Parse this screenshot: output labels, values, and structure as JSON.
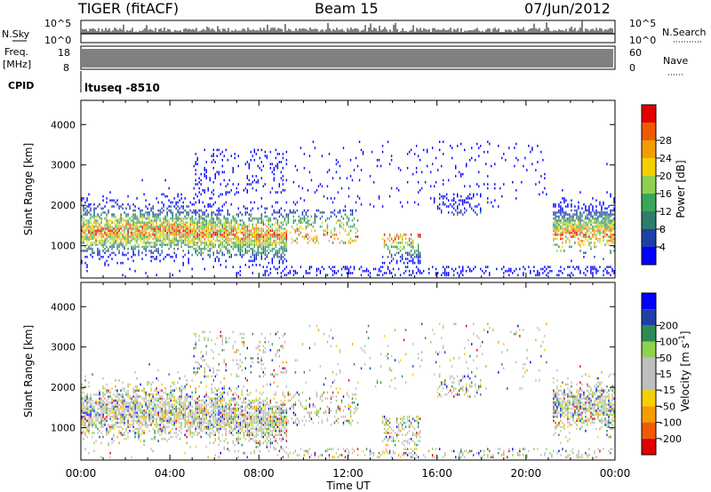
{
  "header": {
    "radar": "TIGER (fitACF)",
    "beam": "Beam 15",
    "date": "07/Jun/2012"
  },
  "nsky_panel": {
    "left_label": "N.Sky",
    "right_label": "N.Search",
    "left_ticks": [
      "10^5",
      "10^0"
    ],
    "right_ticks": [
      "10^5",
      "10^0"
    ]
  },
  "freq_panel": {
    "left_label_1": "Freq.",
    "left_label_2": "[MHz]",
    "left_ticks": [
      "18",
      "8"
    ],
    "right_ticks": [
      "60",
      "0"
    ],
    "right_label": "Nave"
  },
  "cpid_panel": {
    "label": "CPID",
    "value": "ltuseq -8510"
  },
  "colors": {
    "power": [
      "#0000ff",
      "#1f3fa8",
      "#2e7d6b",
      "#3aa65a",
      "#8fd14f",
      "#f5d000",
      "#f59d00",
      "#f05a00",
      "#e00000"
    ],
    "velocity": [
      "#e00000",
      "#f05a00",
      "#f59d00",
      "#f5d000",
      "#bfbfbf",
      "#bfbfbf",
      "#8fd14f",
      "#2e8b57",
      "#1f3fa8",
      "#0000ff"
    ]
  },
  "chart_data": [
    {
      "type": "heatmap",
      "name": "power",
      "ylabel": "Slant Range [km]",
      "xlabel": "",
      "y_ticks": [
        "1000",
        "2000",
        "3000",
        "4000"
      ],
      "ylim": [
        200,
        4600
      ],
      "xlim_hours": [
        0,
        24
      ],
      "x_ticks": [
        "00:00",
        "04:00",
        "08:00",
        "12:00",
        "16:00",
        "20:00",
        "00:00"
      ],
      "colorbar_label": "Power [dB]",
      "colorbar_ticks": [
        "4",
        "8",
        "12",
        "16",
        "20",
        "24",
        "28"
      ],
      "colorbar_range": [
        0,
        32
      ]
    },
    {
      "type": "heatmap",
      "name": "velocity",
      "ylabel": "Slant Range [km]",
      "xlabel": "Time UT",
      "y_ticks": [
        "1000",
        "2000",
        "3000",
        "4000"
      ],
      "ylim": [
        200,
        4600
      ],
      "xlim_hours": [
        0,
        24
      ],
      "x_ticks": [
        "00:00",
        "04:00",
        "08:00",
        "12:00",
        "16:00",
        "20:00",
        "00:00"
      ],
      "colorbar_label": "Velocity [m s^-1]",
      "colorbar_ticks": [
        "-200",
        "-100",
        "-50",
        "-15",
        "15",
        "50",
        "100",
        "200"
      ]
    }
  ]
}
